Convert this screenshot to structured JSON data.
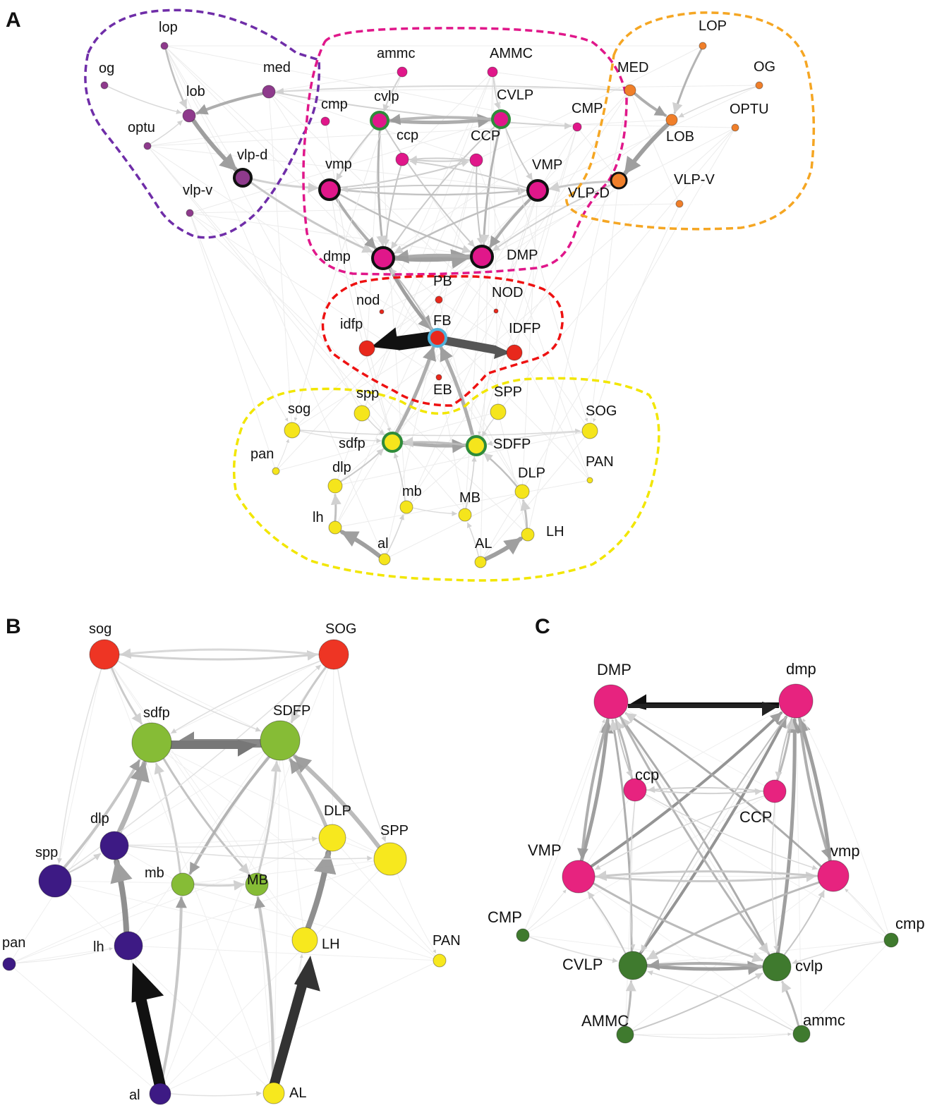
{
  "panels": [
    {
      "letter": "A",
      "groups": [
        {
          "id": "left-optic",
          "color": "#6f2da8"
        },
        {
          "id": "central-brain",
          "color": "#e0178a"
        },
        {
          "id": "right-optic",
          "color": "#f5a623"
        },
        {
          "id": "central-complex",
          "color": "#ee1111"
        },
        {
          "id": "lateral-horn",
          "color": "#f2e600"
        }
      ],
      "nodes": [
        {
          "id": "lop",
          "label": "lop",
          "fill": "#8e3a8c"
        },
        {
          "id": "og",
          "label": "og",
          "fill": "#8e3a8c"
        },
        {
          "id": "med",
          "label": "med",
          "fill": "#8e3a8c"
        },
        {
          "id": "lob",
          "label": "lob",
          "fill": "#8e3a8c"
        },
        {
          "id": "optu",
          "label": "optu",
          "fill": "#8e3a8c"
        },
        {
          "id": "vlpd",
          "label": "vlp-d",
          "fill": "#8e3a8c",
          "ring": "#111111"
        },
        {
          "id": "vlpv",
          "label": "vlp-v",
          "fill": "#8e3a8c"
        },
        {
          "id": "ammc",
          "label": "ammc",
          "fill": "#e0178a"
        },
        {
          "id": "AMMC",
          "label": "AMMC",
          "fill": "#e0178a"
        },
        {
          "id": "cmp",
          "label": "cmp",
          "fill": "#e0178a"
        },
        {
          "id": "cvlp",
          "label": "cvlp",
          "fill": "#e0178a",
          "ring": "#2e8b3a"
        },
        {
          "id": "CVLP",
          "label": "CVLP",
          "fill": "#e0178a",
          "ring": "#2e8b3a"
        },
        {
          "id": "CMP",
          "label": "CMP",
          "fill": "#e0178a"
        },
        {
          "id": "ccp",
          "label": "ccp",
          "fill": "#e0178a"
        },
        {
          "id": "CCP",
          "label": "CCP",
          "fill": "#e0178a"
        },
        {
          "id": "vmp",
          "label": "vmp",
          "fill": "#e0178a",
          "ring": "#111111"
        },
        {
          "id": "VMP",
          "label": "VMP",
          "fill": "#e0178a",
          "ring": "#111111"
        },
        {
          "id": "dmp",
          "label": "dmp",
          "fill": "#e0178a",
          "ring": "#111111"
        },
        {
          "id": "DMP",
          "label": "DMP",
          "fill": "#e0178a",
          "ring": "#111111"
        },
        {
          "id": "LOP",
          "label": "LOP",
          "fill": "#f07f2a"
        },
        {
          "id": "MED",
          "label": "MED",
          "fill": "#f07f2a"
        },
        {
          "id": "OG",
          "label": "OG",
          "fill": "#f07f2a"
        },
        {
          "id": "OPTU",
          "label": "OPTU",
          "fill": "#f07f2a"
        },
        {
          "id": "LOB",
          "label": "LOB",
          "fill": "#f07f2a"
        },
        {
          "id": "VLPD",
          "label": "VLP-D",
          "fill": "#f07f2a",
          "ring": "#111111"
        },
        {
          "id": "VLPV",
          "label": "VLP-V",
          "fill": "#f07f2a"
        },
        {
          "id": "PB",
          "label": "PB",
          "fill": "#e8281c"
        },
        {
          "id": "nod",
          "label": "nod",
          "fill": "#e8281c"
        },
        {
          "id": "NOD",
          "label": "NOD",
          "fill": "#e8281c"
        },
        {
          "id": "idfp",
          "label": "idfp",
          "fill": "#e8281c"
        },
        {
          "id": "FB",
          "label": "FB",
          "fill": "#e8281c",
          "ring": "#4fb0d8"
        },
        {
          "id": "IDFP",
          "label": "IDFP",
          "fill": "#e8281c"
        },
        {
          "id": "EB",
          "label": "EB",
          "fill": "#e8281c"
        },
        {
          "id": "spp",
          "label": "spp",
          "fill": "#f5e51c"
        },
        {
          "id": "SPP",
          "label": "SPP",
          "fill": "#f5e51c"
        },
        {
          "id": "sog",
          "label": "sog",
          "fill": "#f5e51c"
        },
        {
          "id": "SOG",
          "label": "SOG",
          "fill": "#f5e51c"
        },
        {
          "id": "sdfp",
          "label": "sdfp",
          "fill": "#f5e51c",
          "ring": "#2e8b3a"
        },
        {
          "id": "SDFP",
          "label": "SDFP",
          "fill": "#f5e51c",
          "ring": "#2e8b3a"
        },
        {
          "id": "pan",
          "label": "pan",
          "fill": "#f5e51c"
        },
        {
          "id": "PAN",
          "label": "PAN",
          "fill": "#f5e51c"
        },
        {
          "id": "dlp",
          "label": "dlp",
          "fill": "#f5e51c"
        },
        {
          "id": "DLP",
          "label": "DLP",
          "fill": "#f5e51c"
        },
        {
          "id": "mb",
          "label": "mb",
          "fill": "#f5e51c"
        },
        {
          "id": "MB",
          "label": "MB",
          "fill": "#f5e51c"
        },
        {
          "id": "lh",
          "label": "lh",
          "fill": "#f5e51c"
        },
        {
          "id": "LH",
          "label": "LH",
          "fill": "#f5e51c"
        },
        {
          "id": "al",
          "label": "al",
          "fill": "#f5e51c"
        },
        {
          "id": "AL",
          "label": "AL",
          "fill": "#f5e51c"
        }
      ]
    },
    {
      "letter": "B",
      "nodes": [
        {
          "id": "sog",
          "label": "sog",
          "fill": "#ee3524"
        },
        {
          "id": "SOG",
          "label": "SOG",
          "fill": "#ee3524"
        },
        {
          "id": "sdfp",
          "label": "sdfp",
          "fill": "#86bc36"
        },
        {
          "id": "SDFP",
          "label": "SDFP",
          "fill": "#86bc36"
        },
        {
          "id": "dlp",
          "label": "dlp",
          "fill": "#3d1a84"
        },
        {
          "id": "DLP",
          "label": "DLP",
          "fill": "#f7e81e"
        },
        {
          "id": "spp",
          "label": "spp",
          "fill": "#3d1a84"
        },
        {
          "id": "SPP",
          "label": "SPP",
          "fill": "#f7e81e"
        },
        {
          "id": "mb",
          "label": "mb",
          "fill": "#86bc36"
        },
        {
          "id": "MB",
          "label": "MB",
          "fill": "#86bc36"
        },
        {
          "id": "pan",
          "label": "pan",
          "fill": "#3d1a84"
        },
        {
          "id": "lh",
          "label": "lh",
          "fill": "#3d1a84"
        },
        {
          "id": "LH",
          "label": "LH",
          "fill": "#f7e81e"
        },
        {
          "id": "PAN",
          "label": "PAN",
          "fill": "#f7e81e"
        },
        {
          "id": "al",
          "label": "al",
          "fill": "#3d1a84"
        },
        {
          "id": "AL",
          "label": "AL",
          "fill": "#f7e81e"
        }
      ]
    },
    {
      "letter": "C",
      "nodes": [
        {
          "id": "DMP",
          "label": "DMP",
          "fill": "#e7237f"
        },
        {
          "id": "dmp",
          "label": "dmp",
          "fill": "#e7237f"
        },
        {
          "id": "ccp",
          "label": "ccp",
          "fill": "#e7237f"
        },
        {
          "id": "CCP",
          "label": "CCP",
          "fill": "#e7237f"
        },
        {
          "id": "VMP",
          "label": "VMP",
          "fill": "#e7237f"
        },
        {
          "id": "vmp",
          "label": "vmp",
          "fill": "#e7237f"
        },
        {
          "id": "CMP",
          "label": "CMP",
          "fill": "#3f7a2e"
        },
        {
          "id": "cmp",
          "label": "cmp",
          "fill": "#3f7a2e"
        },
        {
          "id": "CVLP",
          "label": "CVLP",
          "fill": "#3f7a2e"
        },
        {
          "id": "cvlp",
          "label": "cvlp",
          "fill": "#3f7a2e"
        },
        {
          "id": "AMMC",
          "label": "AMMC",
          "fill": "#3f7a2e"
        },
        {
          "id": "ammc",
          "label": "ammc",
          "fill": "#3f7a2e"
        }
      ]
    }
  ]
}
